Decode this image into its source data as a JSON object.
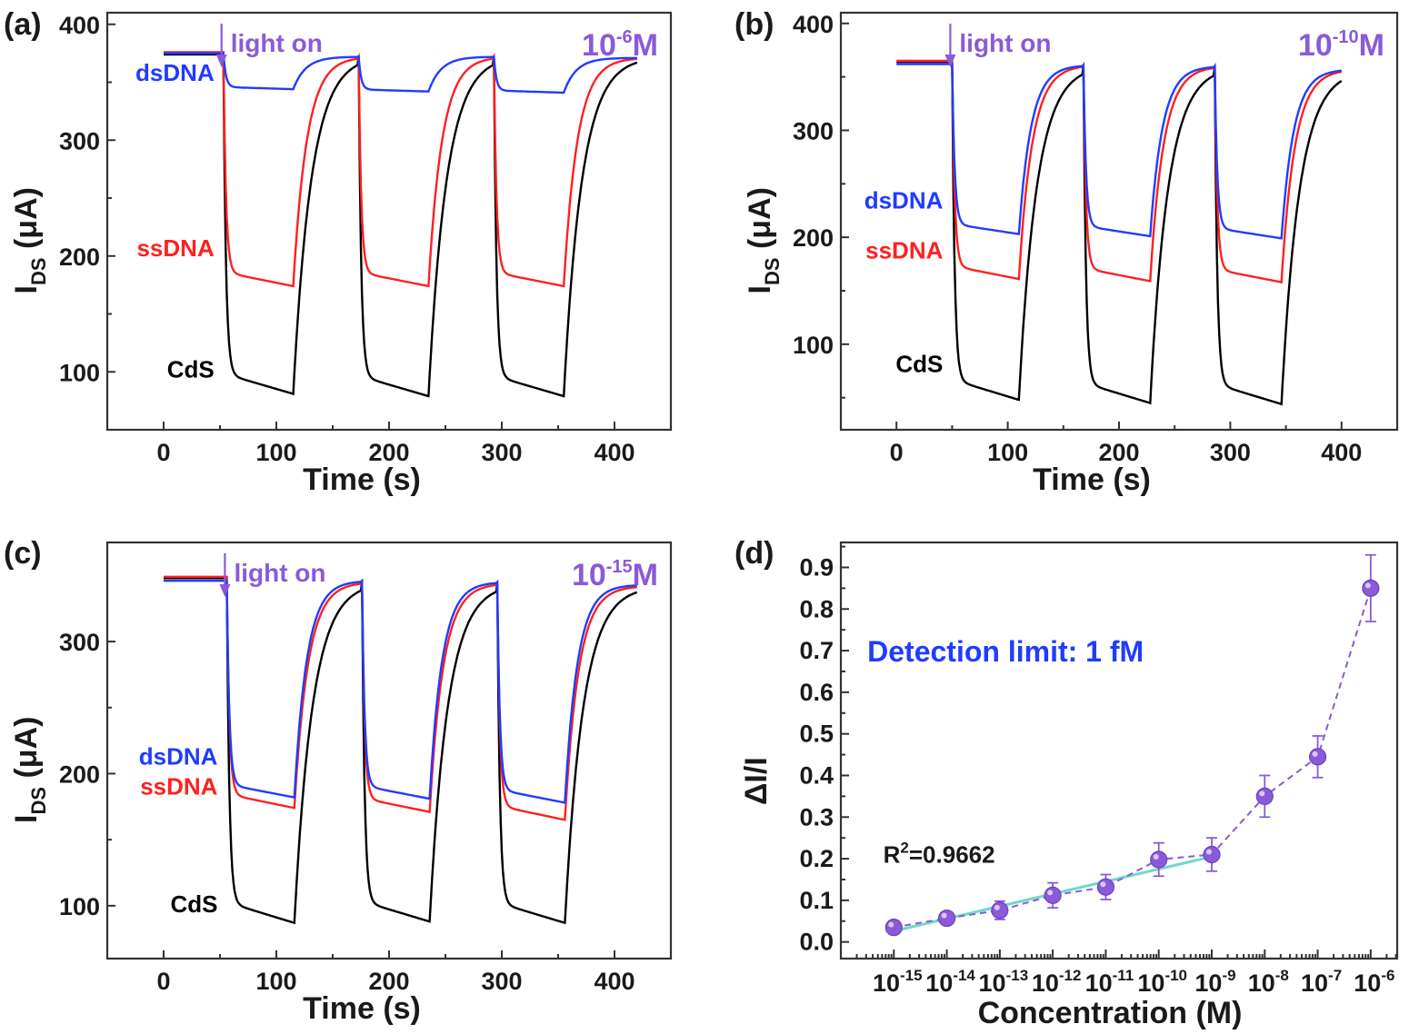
{
  "colors": {
    "CdS": "#000000",
    "ssDNA": "#ff2020",
    "dsDNA": "#1f3cff",
    "accent": "#8a5ad8",
    "fit": "#6fd9c8",
    "detection": "#1f3cff"
  },
  "chart_data": [
    {
      "panel": "(a)",
      "type": "line",
      "xlabel": "Time (s)",
      "ylabel_main": "I",
      "ylabel_sub": "DS",
      "ylabel_rest": " (μA)",
      "xlim": [
        -50,
        450
      ],
      "ylim": [
        50,
        410
      ],
      "xticks": [
        0,
        100,
        200,
        300,
        400
      ],
      "yticks": [
        100,
        200,
        300,
        400
      ],
      "concentration": {
        "base": "10",
        "exp": "-6",
        "unit": "M"
      },
      "light_on": {
        "text": "light on",
        "x": 53
      },
      "series": [
        {
          "name": "dsDNA",
          "color_key": "dsDNA",
          "start": 375,
          "plateaus": [
            344,
            342,
            341
          ],
          "recover": [
            372,
            372,
            371
          ],
          "label_y": 351
        },
        {
          "name": "ssDNA",
          "color_key": "ssDNA",
          "start": 376,
          "plateaus": [
            174,
            174,
            174
          ],
          "recover": [
            372,
            372,
            371
          ],
          "label_y": 200
        },
        {
          "name": "CdS",
          "color_key": "CdS",
          "start": 374,
          "plateaus": [
            81,
            79,
            79
          ],
          "recover": [
            373,
            373,
            372
          ],
          "label_y": 95
        }
      ],
      "cycles": {
        "first_off": 53,
        "period": 120,
        "on_duration": 62,
        "end": 420
      }
    },
    {
      "panel": "(b)",
      "type": "line",
      "xlabel": "Time (s)",
      "ylabel_main": "I",
      "ylabel_sub": "DS",
      "ylabel_rest": " (μA)",
      "xlim": [
        -50,
        450
      ],
      "ylim": [
        20,
        410
      ],
      "xticks": [
        0,
        100,
        200,
        300,
        400
      ],
      "yticks": [
        100,
        200,
        300,
        400
      ],
      "concentration": {
        "base": "10",
        "exp": "-10",
        "unit": "M"
      },
      "light_on": {
        "text": "light on",
        "x": 50
      },
      "series": [
        {
          "name": "dsDNA",
          "color_key": "dsDNA",
          "start": 362,
          "plateaus": [
            203,
            201,
            199
          ],
          "recover": [
            361,
            360,
            357
          ],
          "label_y": 227
        },
        {
          "name": "ssDNA",
          "color_key": "ssDNA",
          "start": 365,
          "plateaus": [
            161,
            159,
            158
          ],
          "recover": [
            361,
            360,
            357
          ],
          "label_y": 180
        },
        {
          "name": "CdS",
          "color_key": "CdS",
          "start": 364,
          "plateaus": [
            48,
            45,
            44
          ],
          "recover": [
            361,
            360,
            357
          ],
          "label_y": 74
        }
      ],
      "cycles": {
        "first_off": 50,
        "period": 118,
        "on_duration": 60,
        "end": 400
      }
    },
    {
      "panel": "(c)",
      "type": "line",
      "xlabel": "Time (s)",
      "ylabel_main": "I",
      "ylabel_sub": "DS",
      "ylabel_rest": " (μA)",
      "xlim": [
        -50,
        450
      ],
      "ylim": [
        60,
        375
      ],
      "xticks": [
        0,
        100,
        200,
        300,
        400
      ],
      "yticks": [
        100,
        200,
        300
      ],
      "concentration": {
        "base": "10",
        "exp": "-15",
        "unit": "M"
      },
      "light_on": {
        "text": "light on",
        "x": 56
      },
      "series": [
        {
          "name": "dsDNA",
          "color_key": "dsDNA",
          "start": 346,
          "plateaus": [
            182,
            181,
            178
          ],
          "recover": [
            346,
            345,
            343
          ],
          "label_y": 207
        },
        {
          "name": "ssDNA",
          "color_key": "ssDNA",
          "start": 349,
          "plateaus": [
            174,
            171,
            165
          ],
          "recover": [
            345,
            344,
            342
          ],
          "label_y": 184
        },
        {
          "name": "CdS",
          "color_key": "CdS",
          "start": 348,
          "plateaus": [
            87,
            88,
            87
          ],
          "recover": [
            345,
            344,
            342
          ],
          "label_y": 95
        }
      ],
      "cycles": {
        "first_off": 56,
        "period": 120,
        "on_duration": 60,
        "end": 420
      }
    },
    {
      "panel": "(d)",
      "type": "scatter",
      "xlabel": "Concentration (M)",
      "ylabel": "ΔI/I",
      "xscale": "log",
      "xlim_exp": [
        -16,
        -5.5
      ],
      "ylim": [
        -0.04,
        0.96
      ],
      "yticks": [
        "0.0",
        "0.1",
        "0.2",
        "0.3",
        "0.4",
        "0.5",
        "0.6",
        "0.7",
        "0.8",
        "0.9"
      ],
      "x_exponents": [
        -15,
        -14,
        -13,
        -12,
        -11,
        -10,
        -9,
        -8,
        -7,
        -6
      ],
      "values": [
        0.035,
        0.057,
        0.076,
        0.112,
        0.132,
        0.198,
        0.21,
        0.35,
        0.445,
        0.85
      ],
      "errors": [
        0.015,
        0.015,
        0.022,
        0.03,
        0.03,
        0.04,
        0.04,
        0.05,
        0.05,
        0.08
      ],
      "fit": {
        "from_exp": -15,
        "to_exp": -9,
        "y_from": 0.026,
        "y_to": 0.205
      },
      "r_squared": {
        "prefix": "R",
        "sup": "2",
        "value": "=0.9662"
      },
      "detection_limit": "Detection limit: 1 fM"
    }
  ]
}
